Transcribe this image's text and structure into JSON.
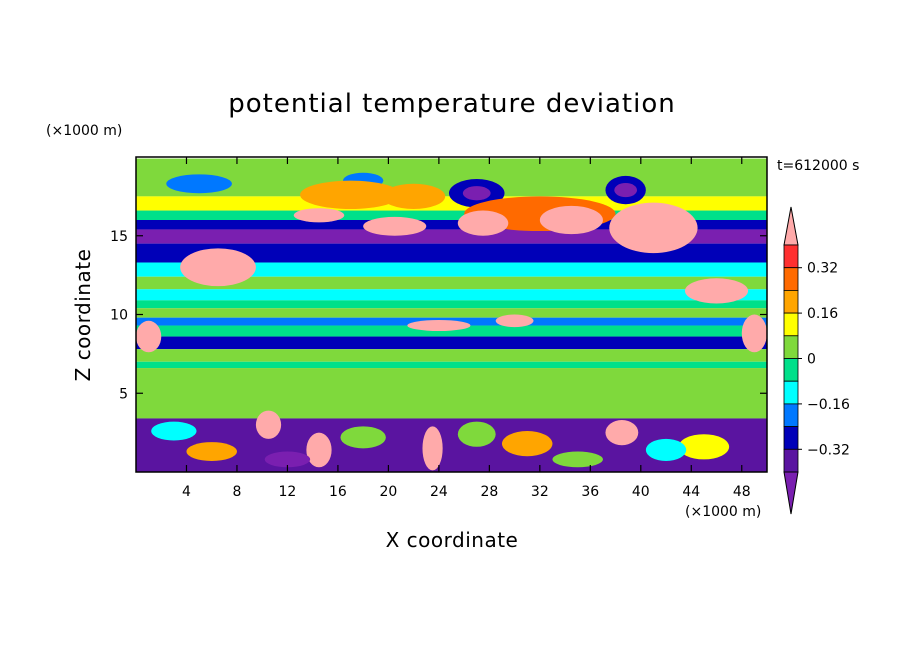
{
  "chart_data": {
    "type": "heatmap",
    "title": "potential temperature deviation",
    "xlabel": "X coordinate",
    "ylabel": "Z coordinate",
    "x_unit": "(×1000 m)",
    "y_unit": "(×1000 m)",
    "time_label": "t=612000 s",
    "xlim": [
      0,
      50
    ],
    "ylim": [
      0,
      20
    ],
    "x_ticks": [
      4,
      8,
      12,
      16,
      20,
      24,
      28,
      32,
      36,
      40,
      44,
      48
    ],
    "y_ticks": [
      5,
      10,
      15
    ],
    "colorbar": {
      "levels": [
        -0.4,
        -0.32,
        -0.24,
        -0.16,
        -0.08,
        0,
        0.08,
        0.16,
        0.24,
        0.32,
        0.4
      ],
      "tick_labels": [
        "0.32",
        "0.16",
        "0",
        "−0.16",
        "−0.32"
      ],
      "colors": [
        "#ffaaaa",
        "#ff3030",
        "#ff6a00",
        "#ffa500",
        "#ffff00",
        "#7fd93c",
        "#00e08a",
        "#00ffff",
        "#0078ff",
        "#0000b8",
        "#5a14a0",
        "#7a1fb0"
      ],
      "extend": "both"
    },
    "bands": [
      {
        "z0": 19.9,
        "z1": 17.5,
        "value": 0.04
      },
      {
        "z0": 17.5,
        "z1": 16.6,
        "value": 0.13
      },
      {
        "z0": 16.6,
        "z1": 16.0,
        "value": -0.05
      },
      {
        "z0": 16.0,
        "z1": 15.4,
        "value": -0.3
      },
      {
        "z0": 15.4,
        "z1": 14.5,
        "value": -0.44
      },
      {
        "z0": 14.5,
        "z1": 13.3,
        "value": -0.25
      },
      {
        "z0": 13.3,
        "z1": 12.4,
        "value": -0.12
      },
      {
        "z0": 12.4,
        "z1": 11.6,
        "value": 0.02
      },
      {
        "z0": 11.6,
        "z1": 10.9,
        "value": -0.12
      },
      {
        "z0": 10.9,
        "z1": 10.4,
        "value": -0.04
      },
      {
        "z0": 10.4,
        "z1": 9.8,
        "value": 0.03
      },
      {
        "z0": 9.8,
        "z1": 9.3,
        "value": -0.2
      },
      {
        "z0": 9.3,
        "z1": 8.6,
        "value": -0.05
      },
      {
        "z0": 8.6,
        "z1": 7.8,
        "value": -0.3
      },
      {
        "z0": 7.8,
        "z1": 7.0,
        "value": 0.03
      },
      {
        "z0": 7.0,
        "z1": 6.6,
        "value": -0.06
      },
      {
        "z0": 6.6,
        "z1": 3.4,
        "value": 0.04
      },
      {
        "z0": 3.4,
        "z1": 0,
        "value": -0.35
      }
    ],
    "features": [
      {
        "shape": "blob",
        "x": 5,
        "z": 18.3,
        "rx": 2.6,
        "rz": 0.6,
        "value": -0.18
      },
      {
        "shape": "blob",
        "x": 18,
        "z": 18.5,
        "rx": 1.6,
        "rz": 0.5,
        "value": -0.18
      },
      {
        "shape": "blob",
        "x": 27,
        "z": 17.7,
        "rx": 2.2,
        "rz": 0.9,
        "value": -0.3
      },
      {
        "shape": "blob",
        "x": 27,
        "z": 17.7,
        "rx": 1.1,
        "rz": 0.45,
        "value": -0.45
      },
      {
        "shape": "blob",
        "x": 38.8,
        "z": 17.9,
        "rx": 1.6,
        "rz": 0.9,
        "value": -0.3
      },
      {
        "shape": "blob",
        "x": 38.8,
        "z": 17.9,
        "rx": 0.9,
        "rz": 0.45,
        "value": -0.45
      },
      {
        "shape": "blob",
        "x": 17,
        "z": 17.6,
        "rx": 4,
        "rz": 0.9,
        "value": 0.22
      },
      {
        "shape": "blob",
        "x": 22,
        "z": 17.5,
        "rx": 2.5,
        "rz": 0.8,
        "value": 0.22
      },
      {
        "shape": "blob",
        "x": 32,
        "z": 16.4,
        "rx": 6,
        "rz": 1.1,
        "value": 0.3
      },
      {
        "shape": "blob",
        "x": 41,
        "z": 15.5,
        "rx": 3.5,
        "rz": 1.6,
        "value": 0.45
      },
      {
        "shape": "blob",
        "x": 34.5,
        "z": 16.0,
        "rx": 2.5,
        "rz": 0.9,
        "value": 0.45
      },
      {
        "shape": "blob",
        "x": 27.5,
        "z": 15.8,
        "rx": 2,
        "rz": 0.8,
        "value": 0.45
      },
      {
        "shape": "blob",
        "x": 20.5,
        "z": 15.6,
        "rx": 2.5,
        "rz": 0.6,
        "value": 0.45
      },
      {
        "shape": "blob",
        "x": 14.5,
        "z": 16.3,
        "rx": 2,
        "rz": 0.45,
        "value": 0.45
      },
      {
        "shape": "blob",
        "x": 6.5,
        "z": 13.0,
        "rx": 3,
        "rz": 1.2,
        "value": 0.45
      },
      {
        "shape": "blob",
        "x": 46,
        "z": 11.5,
        "rx": 2.5,
        "rz": 0.8,
        "value": 0.45
      },
      {
        "shape": "blob",
        "x": 24,
        "z": 9.3,
        "rx": 2.5,
        "rz": 0.35,
        "value": 0.45
      },
      {
        "shape": "blob",
        "x": 30,
        "z": 9.6,
        "rx": 1.5,
        "rz": 0.4,
        "value": 0.45
      },
      {
        "shape": "blob",
        "x": 49,
        "z": 8.8,
        "rx": 1,
        "rz": 1.2,
        "value": 0.45
      },
      {
        "shape": "blob",
        "x": 1,
        "z": 8.6,
        "rx": 1,
        "rz": 1,
        "value": 0.45
      },
      {
        "shape": "blob",
        "x": 10.5,
        "z": 3.0,
        "rx": 1,
        "rz": 0.9,
        "value": 0.45
      },
      {
        "shape": "blob",
        "x": 14.5,
        "z": 1.4,
        "rx": 1,
        "rz": 1.1,
        "value": 0.45
      },
      {
        "shape": "blob",
        "x": 23.5,
        "z": 1.5,
        "rx": 0.8,
        "rz": 1.4,
        "value": 0.45
      },
      {
        "shape": "blob",
        "x": 38.5,
        "z": 2.5,
        "rx": 1.3,
        "rz": 0.8,
        "value": 0.45
      },
      {
        "shape": "blob",
        "x": 6,
        "z": 1.3,
        "rx": 2,
        "rz": 0.6,
        "value": 0.22
      },
      {
        "shape": "blob",
        "x": 31,
        "z": 1.8,
        "rx": 2,
        "rz": 0.8,
        "value": 0.22
      },
      {
        "shape": "blob",
        "x": 45,
        "z": 1.6,
        "rx": 2,
        "rz": 0.8,
        "value": 0.12
      },
      {
        "shape": "blob",
        "x": 18,
        "z": 2.2,
        "rx": 1.8,
        "rz": 0.7,
        "value": 0.04
      },
      {
        "shape": "blob",
        "x": 27,
        "z": 2.4,
        "rx": 1.5,
        "rz": 0.8,
        "value": 0.04
      },
      {
        "shape": "blob",
        "x": 42,
        "z": 1.4,
        "rx": 1.6,
        "rz": 0.7,
        "value": -0.1
      },
      {
        "shape": "blob",
        "x": 3,
        "z": 2.6,
        "rx": 1.8,
        "rz": 0.6,
        "value": -0.1
      },
      {
        "shape": "blob",
        "x": 35,
        "z": 0.8,
        "rx": 2,
        "rz": 0.5,
        "value": 0.04
      },
      {
        "shape": "blob",
        "x": 12,
        "z": 0.8,
        "rx": 1.8,
        "rz": 0.5,
        "value": -0.45
      }
    ]
  }
}
